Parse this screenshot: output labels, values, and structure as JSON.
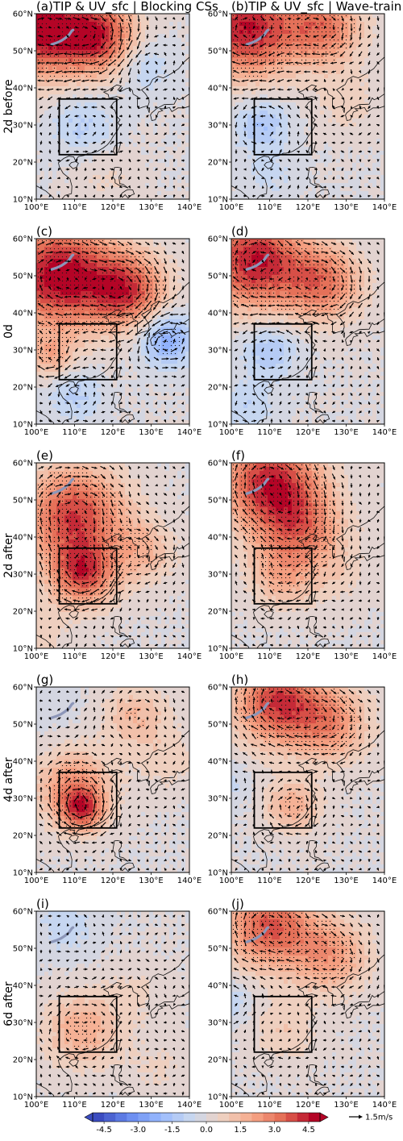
{
  "chart_data": {
    "type": "heatmap",
    "panels": [
      {
        "id": "a",
        "label": "(a)TIP & UV_sfc | Blocking CSs",
        "row": 0,
        "col": 0
      },
      {
        "id": "b",
        "label": "(b)TIP & UV_sfc | Wave-train CSs",
        "row": 0,
        "col": 1
      },
      {
        "id": "c",
        "label": "(c)",
        "row": 1,
        "col": 0
      },
      {
        "id": "d",
        "label": "(d)",
        "row": 1,
        "col": 1
      },
      {
        "id": "e",
        "label": "(e)",
        "row": 2,
        "col": 0
      },
      {
        "id": "f",
        "label": "(f)",
        "row": 2,
        "col": 1
      },
      {
        "id": "g",
        "label": "(g)",
        "row": 3,
        "col": 0
      },
      {
        "id": "h",
        "label": "(h)",
        "row": 3,
        "col": 1
      },
      {
        "id": "i",
        "label": "(i)",
        "row": 4,
        "col": 0
      },
      {
        "id": "j",
        "label": "(j)",
        "row": 4,
        "col": 1
      }
    ],
    "row_labels": [
      "2d before",
      "0d",
      "2d after",
      "4d after",
      "6d after"
    ],
    "lon_ticks": [
      "100°E",
      "110°E",
      "120°E",
      "130°E",
      "140°E"
    ],
    "lat_ticks": [
      "10°N",
      "20°N",
      "30°N",
      "40°N",
      "50°N",
      "60°N"
    ],
    "lon_range": [
      100,
      140
    ],
    "lat_range": [
      10,
      60
    ],
    "box_region": {
      "lon": [
        106,
        121
      ],
      "lat": [
        22,
        37
      ]
    },
    "colorbar": {
      "ticks": [
        "-4.5",
        "-3.0",
        "-1.5",
        "0.0",
        "1.5",
        "3.0",
        "4.5"
      ],
      "range": [
        -5,
        5
      ],
      "cmap": [
        "#3b4cc0",
        "#688aef",
        "#99bafe",
        "#c9d8ef",
        "#edd1c2",
        "#f7a889",
        "#e36a53",
        "#b40426"
      ]
    },
    "vector_key": "1.5m/s",
    "anomaly_centers": [
      [
        {
          "lon": 100,
          "lat": 56,
          "v": 5,
          "s": 9
        },
        {
          "lon": 116,
          "lat": 54,
          "v": 4.2,
          "s": 7
        },
        {
          "lon": 128,
          "lat": 46,
          "v": -1.2,
          "s": 5
        },
        {
          "lon": 112,
          "lat": 30,
          "v": -1.2,
          "s": 6
        },
        {
          "lon": 118,
          "lat": 16,
          "v": 0.6,
          "s": 6
        }
      ],
      [
        {
          "lon": 104,
          "lat": 56,
          "v": 4.8,
          "s": 9
        },
        {
          "lon": 124,
          "lat": 56,
          "v": 3.2,
          "s": 7
        },
        {
          "lon": 108,
          "lat": 30,
          "v": -1.6,
          "s": 5
        },
        {
          "lon": 130,
          "lat": 36,
          "v": 0.8,
          "s": 6
        },
        {
          "lon": 110,
          "lat": 16,
          "v": -0.6,
          "s": 5
        }
      ],
      [
        {
          "lon": 106,
          "lat": 50,
          "v": 5.2,
          "s": 10
        },
        {
          "lon": 124,
          "lat": 46,
          "v": 3.8,
          "s": 7
        },
        {
          "lon": 104,
          "lat": 28,
          "v": 1.8,
          "s": 4
        },
        {
          "lon": 134,
          "lat": 33,
          "v": -2.6,
          "s": 5
        },
        {
          "lon": 110,
          "lat": 18,
          "v": -1.2,
          "s": 5
        }
      ],
      [
        {
          "lon": 106,
          "lat": 54,
          "v": 4.8,
          "s": 9
        },
        {
          "lon": 124,
          "lat": 48,
          "v": 3.2,
          "s": 7
        },
        {
          "lon": 110,
          "lat": 30,
          "v": -1.6,
          "s": 5
        },
        {
          "lon": 104,
          "lat": 15,
          "v": -1,
          "s": 5
        }
      ],
      [
        {
          "lon": 110,
          "lat": 46,
          "v": 4.2,
          "s": 9
        },
        {
          "lon": 112,
          "lat": 30,
          "v": 3.8,
          "s": 6
        },
        {
          "lon": 128,
          "lat": 36,
          "v": 1.6,
          "s": 6
        },
        {
          "lon": 100,
          "lat": 14,
          "v": 0.8,
          "s": 6
        }
      ],
      [
        {
          "lon": 110,
          "lat": 55,
          "v": 4.4,
          "s": 9
        },
        {
          "lon": 118,
          "lat": 42,
          "v": 2.8,
          "s": 8
        },
        {
          "lon": 113,
          "lat": 29,
          "v": 1.6,
          "s": 6
        },
        {
          "lon": 128,
          "lat": 30,
          "v": 0.6,
          "s": 6
        }
      ],
      [
        {
          "lon": 110,
          "lat": 33,
          "v": 2.6,
          "s": 7
        },
        {
          "lon": 112,
          "lat": 27,
          "v": 3.2,
          "s": 4
        },
        {
          "lon": 126,
          "lat": 52,
          "v": 1.6,
          "s": 6
        },
        {
          "lon": 104,
          "lat": 56,
          "v": -0.4,
          "s": 5
        },
        {
          "lon": 134,
          "lat": 40,
          "v": 0.8,
          "s": 6
        }
      ],
      [
        {
          "lon": 112,
          "lat": 56,
          "v": 4.2,
          "s": 8
        },
        {
          "lon": 126,
          "lat": 50,
          "v": 2.6,
          "s": 7
        },
        {
          "lon": 116,
          "lat": 28,
          "v": 2,
          "s": 5
        },
        {
          "lon": 100,
          "lat": 34,
          "v": -0.6,
          "s": 4
        }
      ],
      [
        {
          "lon": 112,
          "lat": 28,
          "v": 2,
          "s": 7
        },
        {
          "lon": 108,
          "lat": 56,
          "v": -0.8,
          "s": 6
        },
        {
          "lon": 126,
          "lat": 38,
          "v": 0.6,
          "s": 6
        },
        {
          "lon": 132,
          "lat": 18,
          "v": 0.6,
          "s": 6
        }
      ],
      [
        {
          "lon": 110,
          "lat": 56,
          "v": 3.8,
          "s": 8
        },
        {
          "lon": 126,
          "lat": 48,
          "v": 2.4,
          "s": 7
        },
        {
          "lon": 100,
          "lat": 36,
          "v": -1,
          "s": 4
        },
        {
          "lon": 114,
          "lat": 28,
          "v": 1,
          "s": 6
        }
      ]
    ]
  }
}
